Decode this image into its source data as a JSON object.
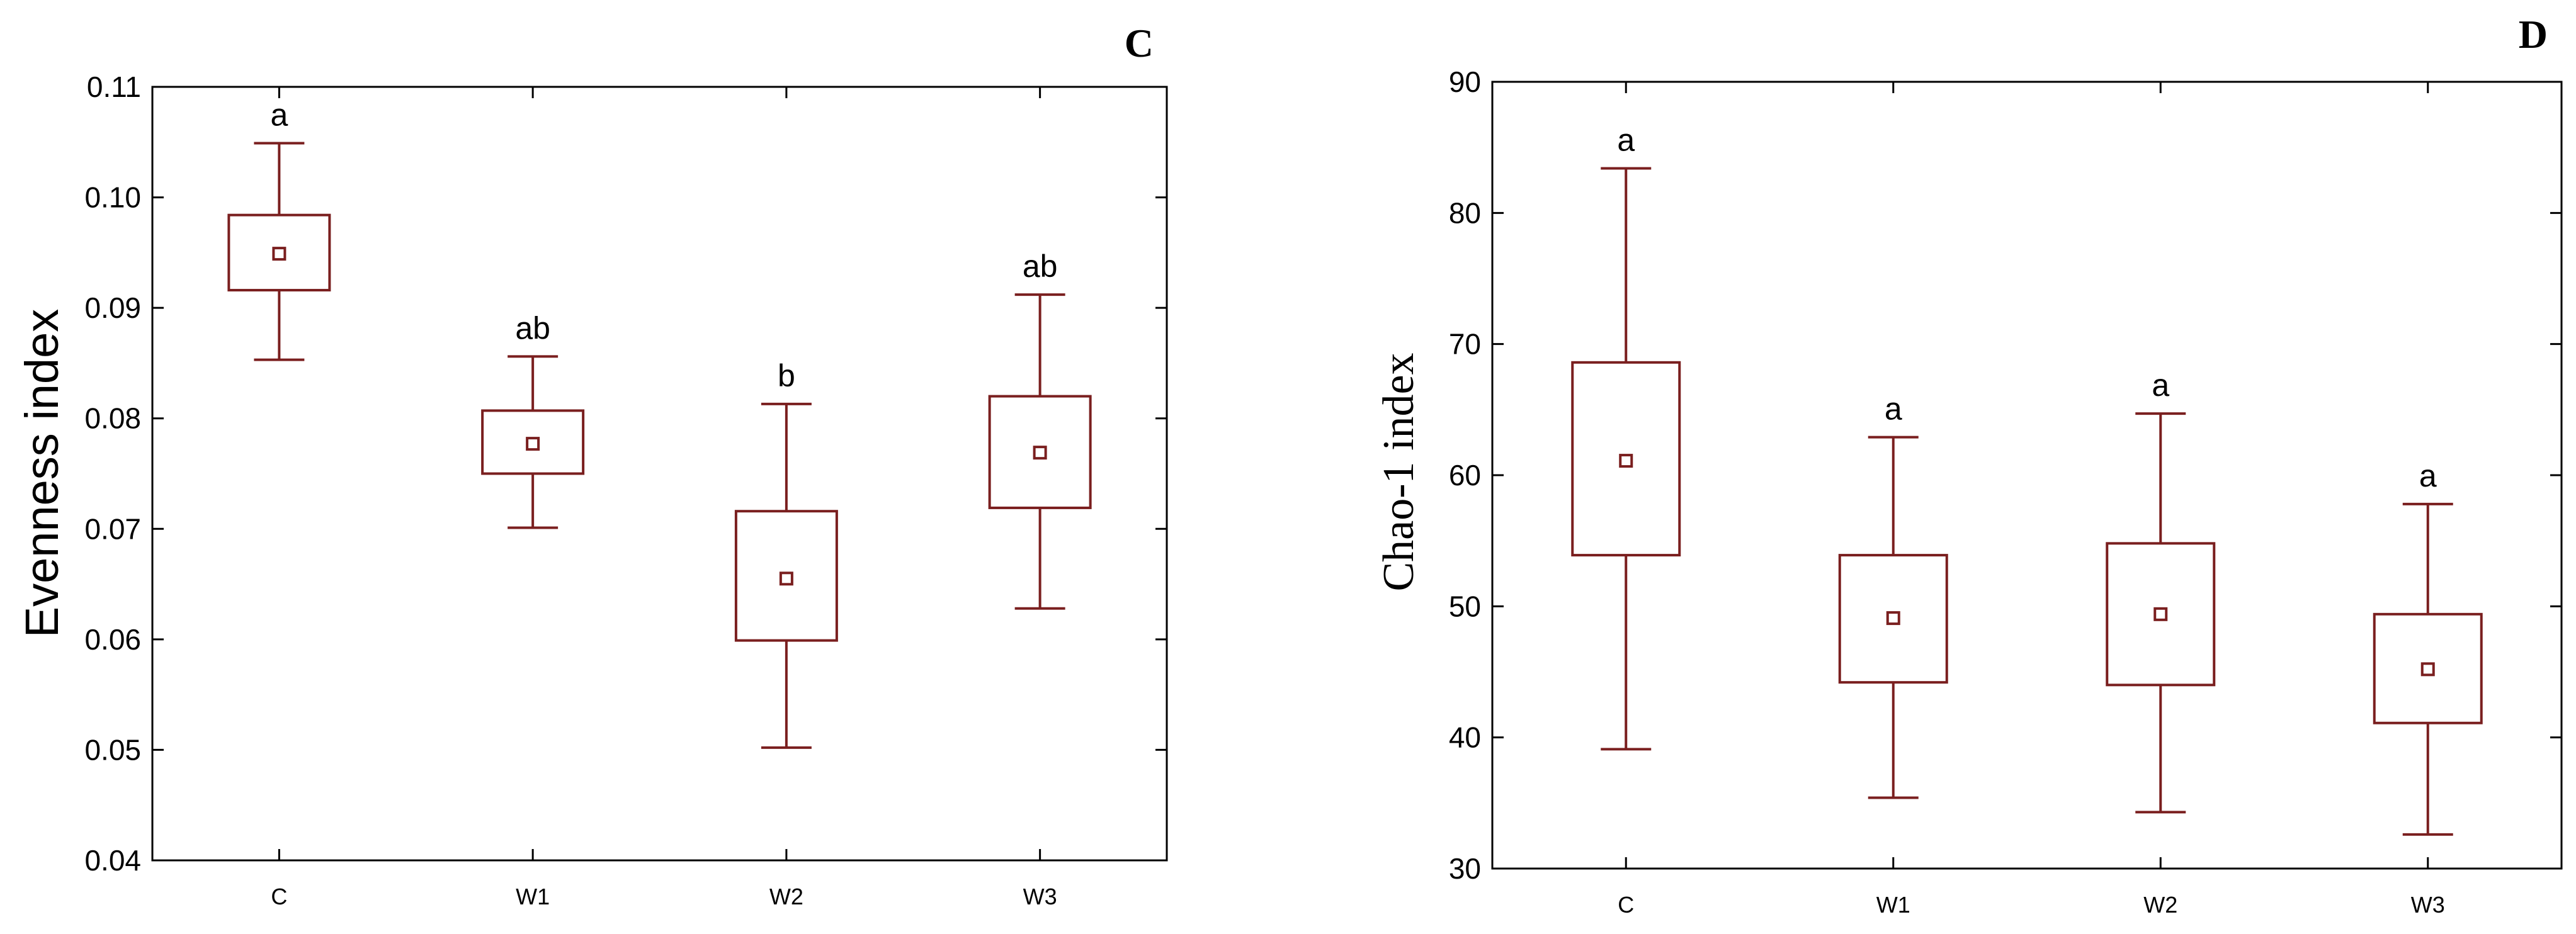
{
  "chart_data": [
    {
      "type": "box",
      "panel": "C",
      "ylabel": "Evenness index",
      "xlabel": "",
      "ylim": [
        0.04,
        0.11
      ],
      "yticks": [
        "0.04",
        "0.05",
        "0.06",
        "0.07",
        "0.08",
        "0.09",
        "0.10",
        "0.11"
      ],
      "categories": [
        "C",
        "W1",
        "W2",
        "W3"
      ],
      "boxes": [
        {
          "category": "C",
          "whisker_low": 0.0853,
          "q1": 0.0916,
          "mid": 0.0949,
          "q3": 0.0984,
          "whisker_high": 0.1049,
          "sig": "a"
        },
        {
          "category": "W1",
          "whisker_low": 0.0701,
          "q1": 0.075,
          "mid": 0.0777,
          "q3": 0.0807,
          "whisker_high": 0.0856,
          "sig": "ab"
        },
        {
          "category": "W2",
          "whisker_low": 0.0502,
          "q1": 0.0599,
          "mid": 0.0655,
          "q3": 0.0716,
          "whisker_high": 0.0813,
          "sig": "b"
        },
        {
          "category": "W3",
          "whisker_low": 0.0628,
          "q1": 0.0719,
          "mid": 0.0769,
          "q3": 0.082,
          "whisker_high": 0.0912,
          "sig": "ab"
        }
      ],
      "grid": false,
      "legend": "none"
    },
    {
      "type": "box",
      "panel": "D",
      "ylabel": "Chao-1 index",
      "xlabel": "",
      "ylim": [
        30,
        90
      ],
      "yticks": [
        "30",
        "40",
        "50",
        "60",
        "70",
        "80",
        "90"
      ],
      "categories": [
        "C",
        "W1",
        "W2",
        "W3"
      ],
      "boxes": [
        {
          "category": "C",
          "whisker_low": 39.1,
          "q1": 53.9,
          "mid": 61.1,
          "q3": 68.6,
          "whisker_high": 83.4,
          "sig": "a"
        },
        {
          "category": "W1",
          "whisker_low": 35.4,
          "q1": 44.2,
          "mid": 49.1,
          "q3": 53.9,
          "whisker_high": 62.9,
          "sig": "a"
        },
        {
          "category": "W2",
          "whisker_low": 34.3,
          "q1": 44.0,
          "mid": 49.4,
          "q3": 54.8,
          "whisker_high": 64.7,
          "sig": "a"
        },
        {
          "category": "W3",
          "whisker_low": 32.6,
          "q1": 41.1,
          "mid": 45.2,
          "q3": 49.4,
          "whisker_high": 57.8,
          "sig": "a"
        }
      ],
      "grid": false,
      "legend": "none"
    }
  ],
  "colors": {
    "box_stroke": "#7a1f1f",
    "axis": "#000000",
    "background": "#ffffff"
  }
}
